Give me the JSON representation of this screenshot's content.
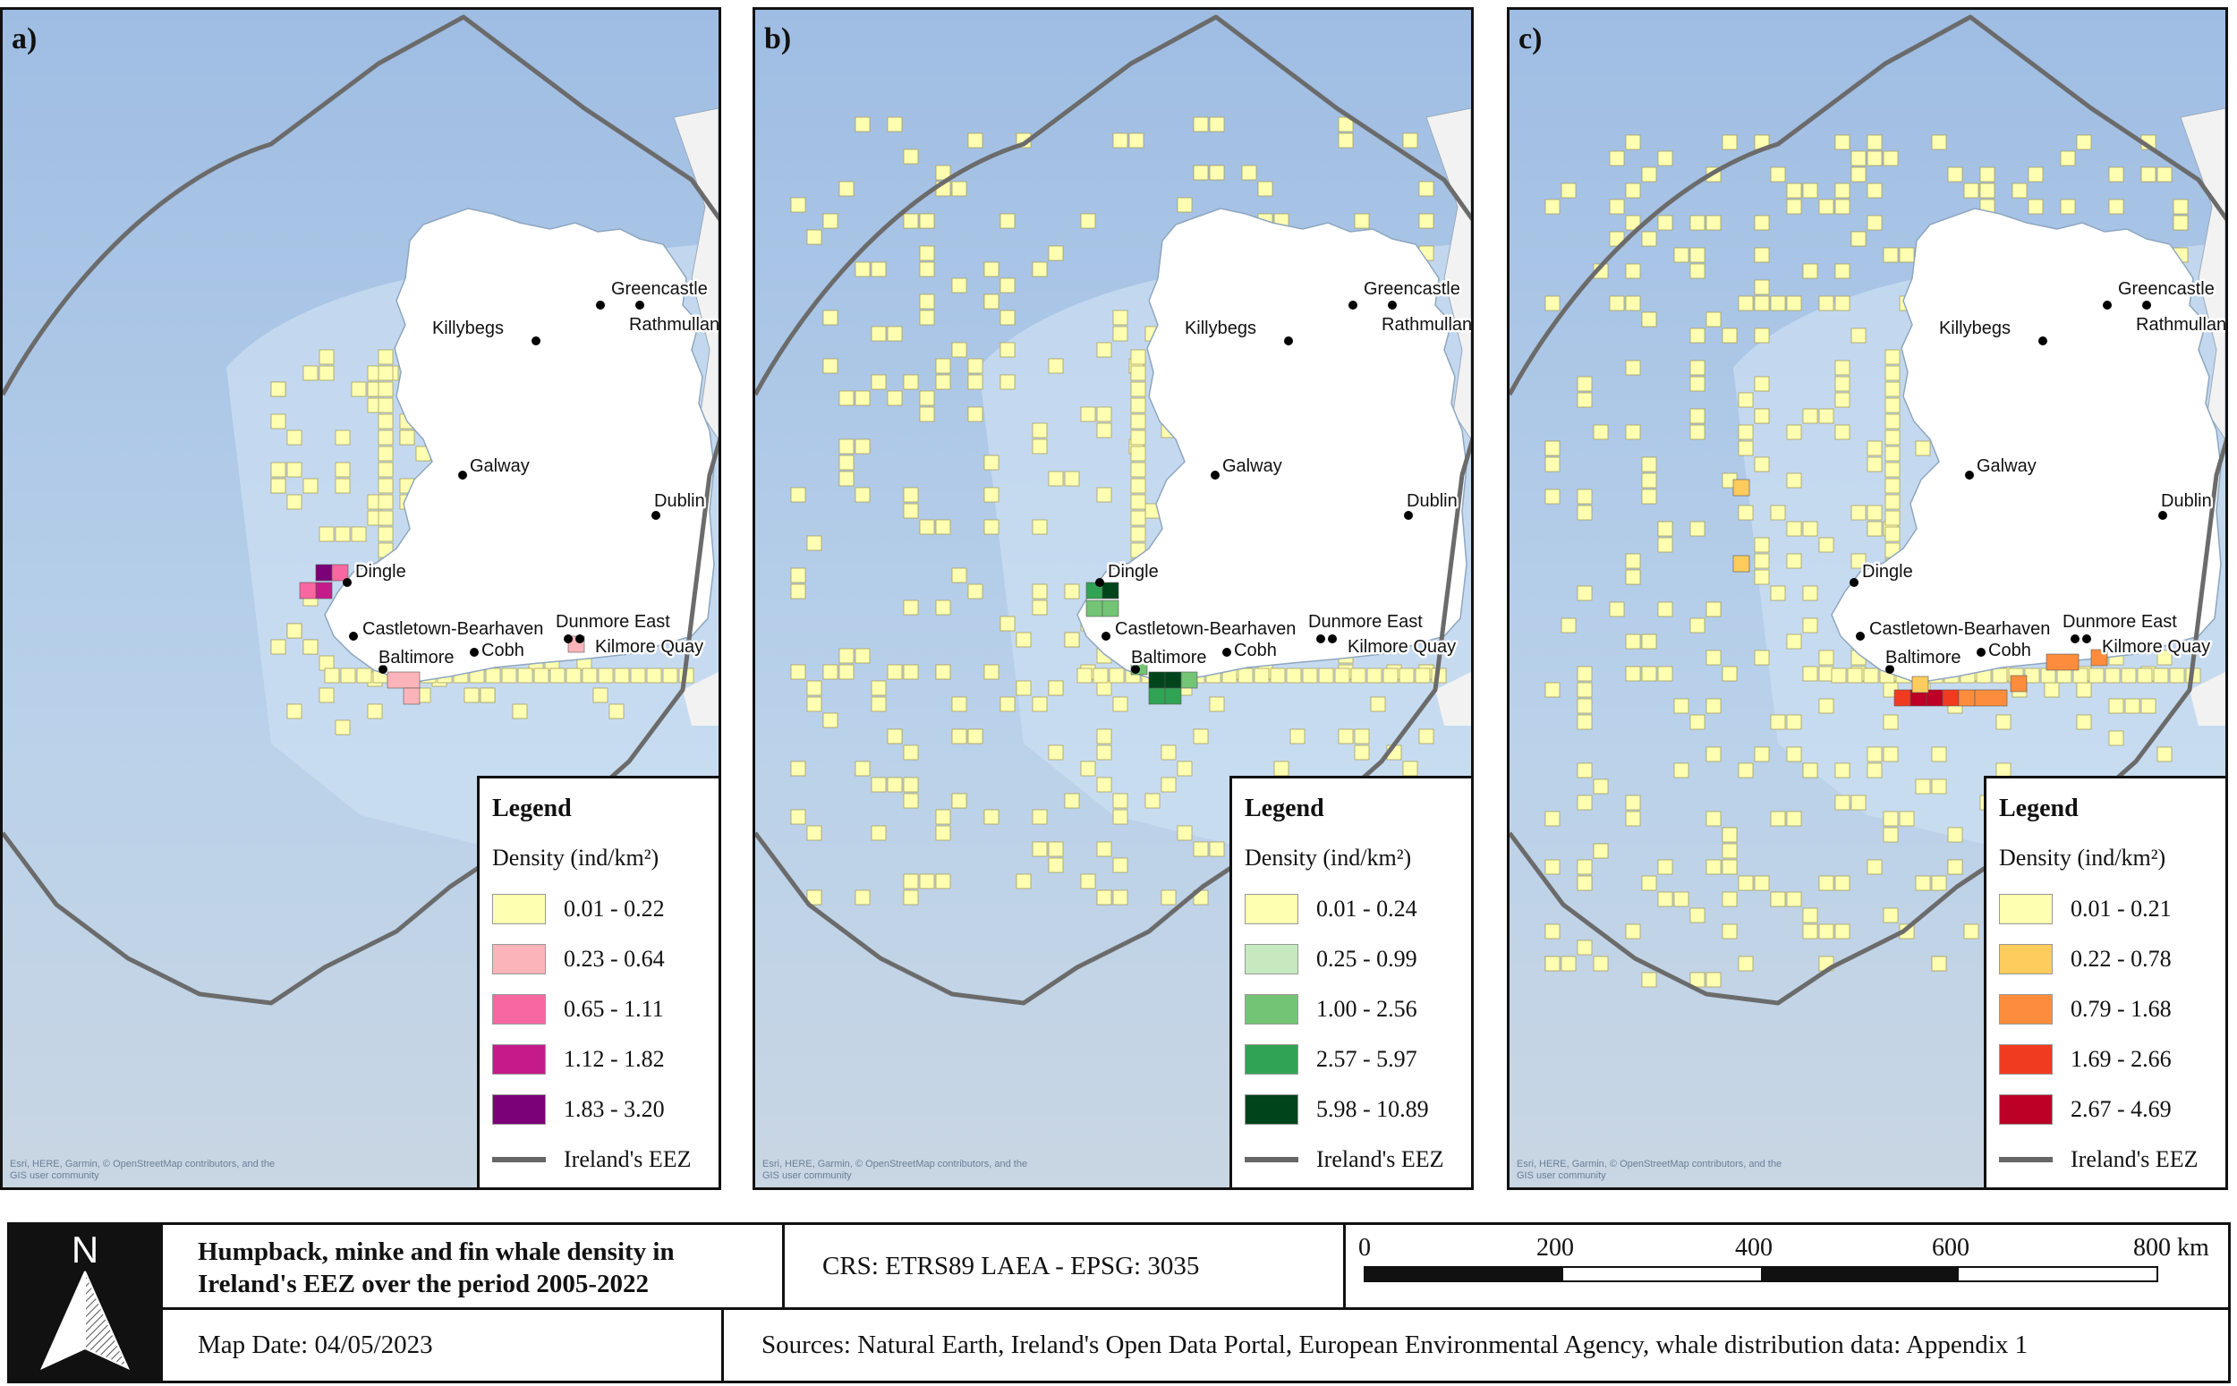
{
  "panels": [
    {
      "letter": "a)",
      "legend": {
        "title": "Legend",
        "unit": "Density (ind/km²)",
        "classes": [
          {
            "label": "0.01 - 0.22",
            "color": "#ffffb2"
          },
          {
            "label": "0.23 - 0.64",
            "color": "#fbb4b9"
          },
          {
            "label": "0.65 - 1.11",
            "color": "#f768a1"
          },
          {
            "label": "1.12 - 1.82",
            "color": "#c51b8a"
          },
          {
            "label": "1.83 - 3.20",
            "color": "#7a0177"
          }
        ],
        "eez_label": "Ireland's EEZ"
      },
      "attribution": "Esri, HERE, Garmin, © OpenStreetMap contributors, and the GIS user community"
    },
    {
      "letter": "b)",
      "legend": {
        "title": "Legend",
        "unit": "Density (ind/km²)",
        "classes": [
          {
            "label": "0.01 - 0.24",
            "color": "#ffffb2"
          },
          {
            "label": "0.25 - 0.99",
            "color": "#c7e9c0"
          },
          {
            "label": "1.00 - 2.56",
            "color": "#74c476"
          },
          {
            "label": "2.57 - 5.97",
            "color": "#31a354"
          },
          {
            "label": "5.98 - 10.89",
            "color": "#00441b"
          }
        ],
        "eez_label": "Ireland's EEZ"
      },
      "attribution": "Esri, HERE, Garmin, © OpenStreetMap contributors, and the GIS user community"
    },
    {
      "letter": "c)",
      "legend": {
        "title": "Legend",
        "unit": "Density (ind/km²)",
        "classes": [
          {
            "label": "0.01 - 0.21",
            "color": "#ffffb2"
          },
          {
            "label": "0.22 - 0.78",
            "color": "#fecc5c"
          },
          {
            "label": "0.79 - 1.68",
            "color": "#fd8d3c"
          },
          {
            "label": "1.69 - 2.66",
            "color": "#f03b20"
          },
          {
            "label": "2.67 - 4.69",
            "color": "#bd0026"
          }
        ],
        "eez_label": "Ireland's EEZ"
      },
      "attribution": "Esri, HERE, Garmin, © OpenStreetMap contributors, and the GIS user community"
    }
  ],
  "places": [
    "Greencastle",
    "Rathmullan",
    "Killybegs",
    "Galway",
    "Dublin",
    "Dingle",
    "Castletown-Bearhaven",
    "Dunmore East",
    "Kilmore Quay",
    "Baltimore",
    "Cobh"
  ],
  "footer": {
    "north_label": "N",
    "title": "Humpback, minke and fin whale density in Ireland's EEZ over the period 2005-2022",
    "crs": "CRS: ETRS89 LAEA - EPSG: 3035",
    "scale_ticks": [
      "0",
      "200",
      "400",
      "600",
      "800 km"
    ],
    "map_date": "Map Date: 04/05/2023",
    "sources": "Sources:  Natural Earth, Ireland's Open Data Portal, European Environmental Agency, whale distribution data: Appendix 1"
  }
}
